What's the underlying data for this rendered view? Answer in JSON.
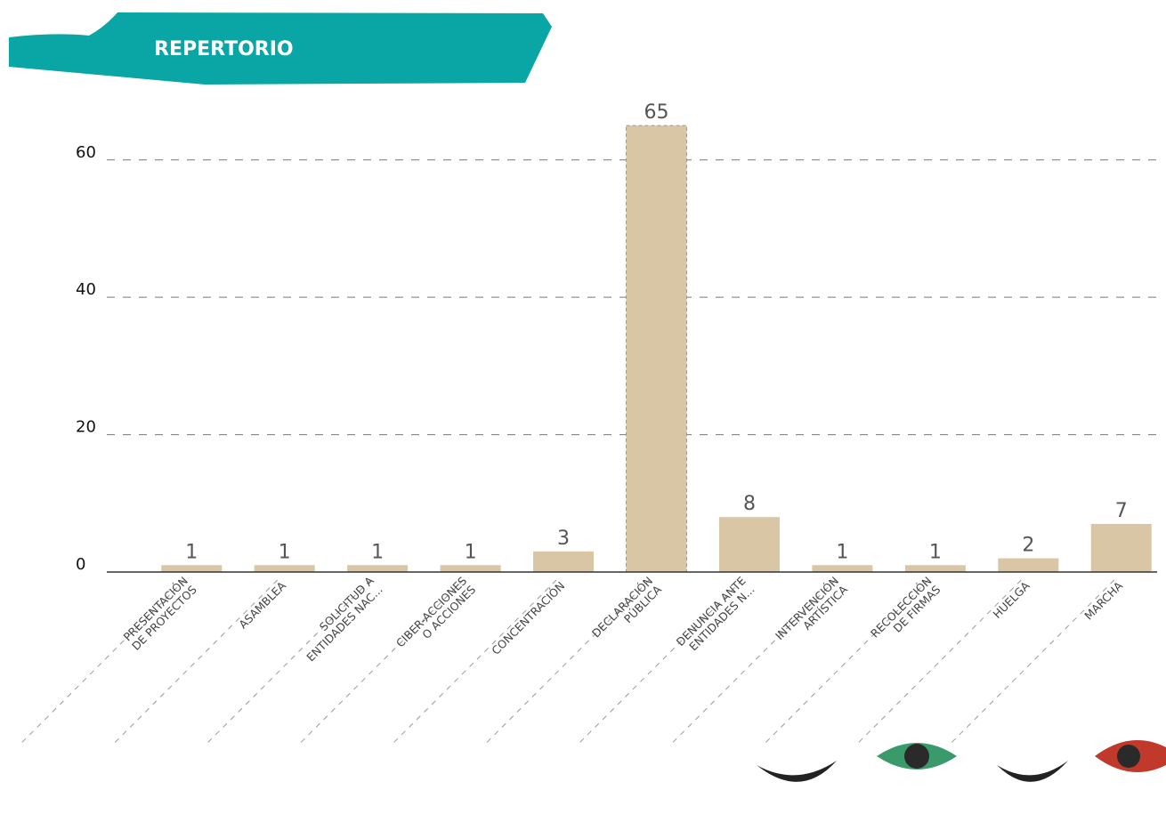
{
  "chart_data": {
    "type": "bar",
    "title": "REPERTORIO",
    "categories": [
      "PRESENTACIÓN\nDE PROYECTOS",
      "ASAMBLEA",
      "SOLICITUD A\nENTIDADES NAC...",
      "CIBER-ACCIONES\nO ACCIONES",
      "CONCENTRACIÓN",
      "DECLARACIÓN\nPÚBLICA",
      "DENUNCIA ANTE\nENTIDADES N...",
      "INTERVENCIÓN\nARTÍSTICA",
      "RECOLECCIÓN\nDE FIRMAS",
      "HUELGA",
      "MARCHA"
    ],
    "values": [
      1,
      1,
      1,
      1,
      3,
      65,
      8,
      1,
      1,
      2,
      7
    ],
    "color": "#d9c6a5",
    "ylim": [
      0,
      68
    ],
    "yticks": [
      0,
      20,
      40,
      60
    ],
    "grid": true
  }
}
